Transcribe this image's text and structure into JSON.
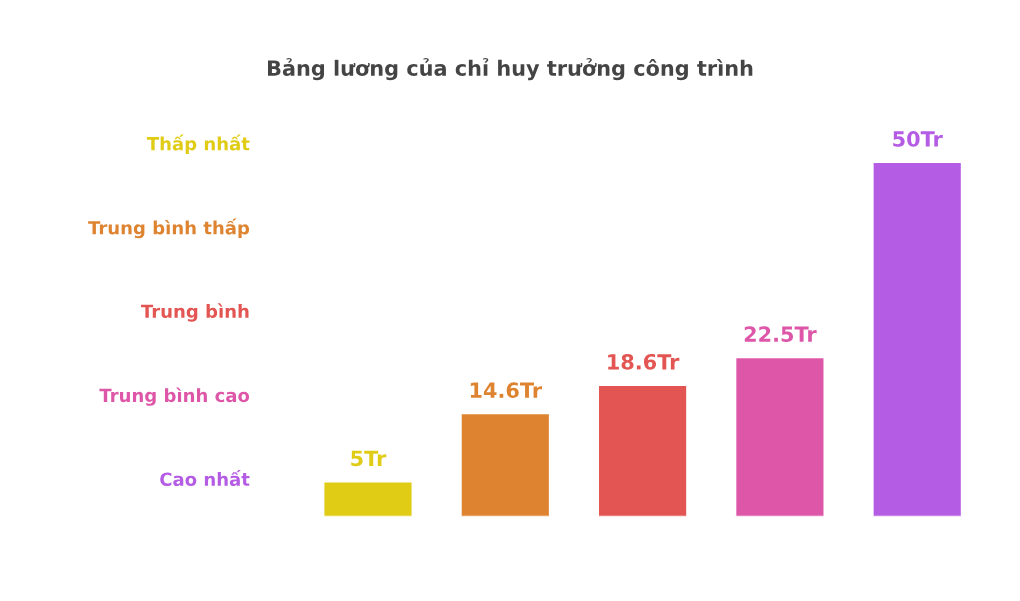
{
  "chart_data": {
    "type": "bar",
    "title": "Bảng lương của chỉ huy trưởng công trình",
    "categories": [
      null,
      null,
      null,
      null,
      null
    ],
    "values": [
      5,
      14.6,
      18.6,
      22.5,
      50
    ],
    "colors": [
      "#e0cb15",
      "#de8431",
      "#e35552",
      "#de56a8",
      "#b55ce5"
    ],
    "value_labels": [
      "5Tr",
      "14.6Tr",
      "18.6Tr",
      "22.5Tr",
      "50Tr"
    ],
    "annotations": [
      "Thấp nhất",
      "Trung bình thấp",
      "Trung bình",
      "Trung bình cao",
      "Cao nhất"
    ],
    "tick_labels": false,
    "grid": false
  }
}
